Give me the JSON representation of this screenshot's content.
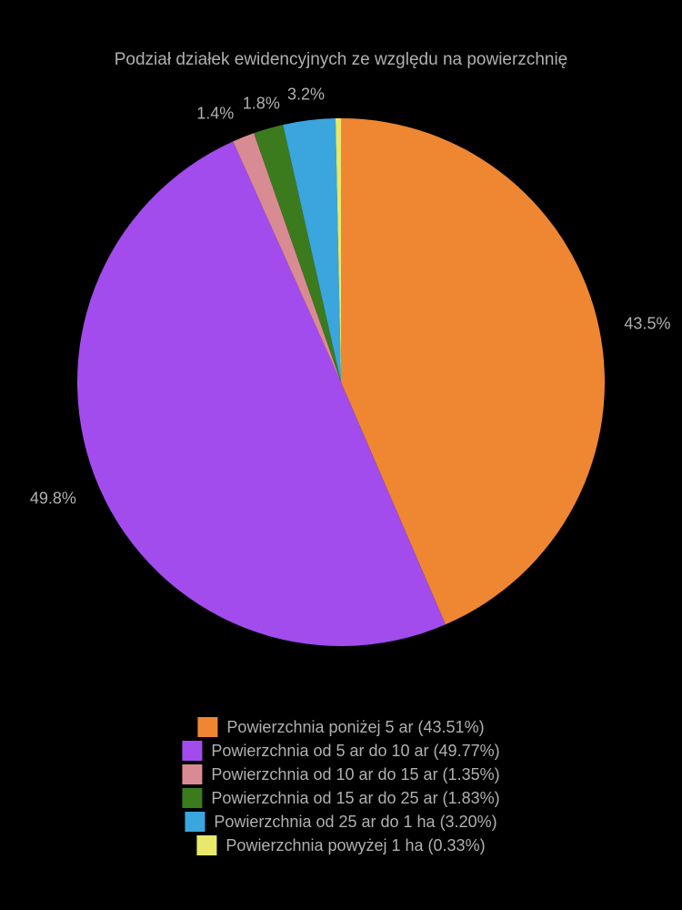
{
  "chart": {
    "type": "pie",
    "title": "Podział działek ewidencyjnych ze względu na powierzchnię",
    "title_fontsize": 19,
    "title_color": "#b0b0b0",
    "background_color": "#000000",
    "label_color": "#b0b0b0",
    "label_fontsize": 18,
    "slices": [
      {
        "label": "Powierzchnia poniżej 5 ar",
        "percent": 43.51,
        "display_percent": "43.5%",
        "color": "#ef8632"
      },
      {
        "label": "Powierzchnia od 5 ar do 10 ar",
        "percent": 49.77,
        "display_percent": "49.8%",
        "color": "#a24ced"
      },
      {
        "label": "Powierzchnia od 10 ar do 15 ar",
        "percent": 1.35,
        "display_percent": "1.4%",
        "color": "#d98b93"
      },
      {
        "label": "Powierzchnia od 15 ar do 25 ar",
        "percent": 1.83,
        "display_percent": "1.8%",
        "color": "#3c7a1e"
      },
      {
        "label": "Powierzchnia od 25 ar do 1 ha",
        "percent": 3.2,
        "display_percent": "3.2%",
        "color": "#3aa6dd"
      },
      {
        "label": "Powierzchnia powyżej 1 ha",
        "percent": 0.33,
        "display_percent": "",
        "color": "#e8e86a"
      }
    ],
    "start_angle_deg": -90,
    "radius": 290
  },
  "legend": {
    "items": [
      {
        "text": "Powierzchnia poniżej 5 ar (43.51%)",
        "color": "#ef8632"
      },
      {
        "text": "Powierzchnia od 5 ar do 10 ar (49.77%)",
        "color": "#a24ced"
      },
      {
        "text": "Powierzchnia od 10 ar do 15 ar (1.35%)",
        "color": "#d98b93"
      },
      {
        "text": "Powierzchnia od 15 ar do 25 ar (1.83%)",
        "color": "#3c7a1e"
      },
      {
        "text": "Powierzchnia od 25 ar do 1 ha (3.20%)",
        "color": "#3aa6dd"
      },
      {
        "text": "Powierzchnia powyżej 1 ha (0.33%)",
        "color": "#e8e86a"
      }
    ]
  }
}
